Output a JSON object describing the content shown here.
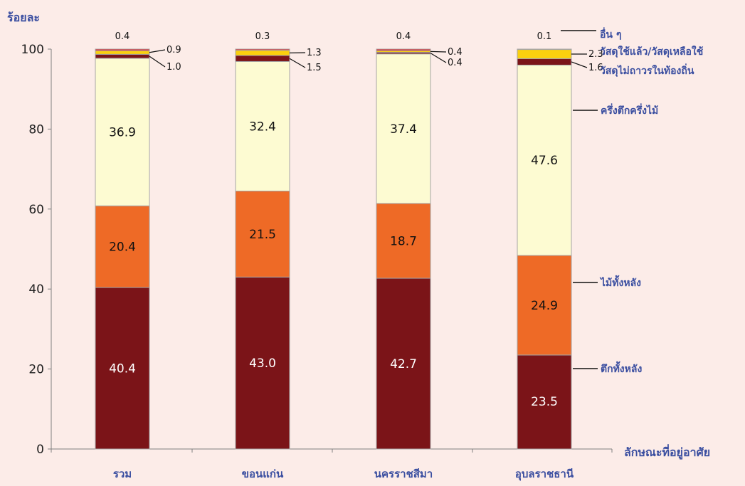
{
  "chart_data": {
    "type": "bar",
    "stacked": true,
    "title": "",
    "ylabel": "ร้อยละ",
    "xlabel": "ลักษณะที่อยู่อาศัย",
    "ylim": [
      0,
      100
    ],
    "yticks": [
      "0",
      "20",
      "40",
      "60",
      "80",
      "100"
    ],
    "grid": false,
    "categories": [
      "รวม",
      "ขอนแก่น",
      "นครราชสีมา",
      "อุบลราชธานี"
    ],
    "series": [
      {
        "name": "ตึกทั้งหลัง",
        "color": "#7b1418",
        "label_color": "#ffffff",
        "values": [
          40.4,
          43.0,
          42.7,
          23.5
        ],
        "labels": [
          "40.4",
          "43.0",
          "42.7",
          "23.5"
        ]
      },
      {
        "name": "ไม้ทั้งหลัง",
        "color": "#ee6a26",
        "label_color": "#111111",
        "values": [
          20.4,
          21.5,
          18.7,
          24.9
        ],
        "labels": [
          "20.4",
          "21.5",
          "18.7",
          "24.9"
        ]
      },
      {
        "name": "ครึ่งตึกครึ่งไม้",
        "color": "#fdfbd2",
        "label_color": "#111111",
        "values": [
          36.9,
          32.4,
          37.4,
          47.6
        ],
        "labels": [
          "36.9",
          "32.4",
          "37.4",
          "47.6"
        ]
      },
      {
        "name": "วัสดุไม่ถาวรในท้องถิ่น",
        "color": "#7b1418",
        "label_color": "#111111",
        "values": [
          1.0,
          1.5,
          0.4,
          1.6
        ],
        "labels": [
          "1.0",
          "1.5",
          "0.4",
          "1.6"
        ]
      },
      {
        "name": "วัสดุใช้แล้ว/วัสดุเหลือใช้",
        "color": "#fbd00e",
        "label_color": "#111111",
        "values": [
          0.9,
          1.3,
          0.4,
          2.3
        ],
        "labels": [
          "0.9",
          "1.3",
          "0.4",
          "2.3"
        ]
      },
      {
        "name": "อื่น ๆ",
        "color": "#e0232a",
        "label_color": "#111111",
        "values": [
          0.4,
          0.3,
          0.4,
          0.1
        ],
        "labels": [
          "0.4",
          "0.3",
          "0.4",
          "0.1"
        ]
      }
    ],
    "legend_placement": "right"
  }
}
